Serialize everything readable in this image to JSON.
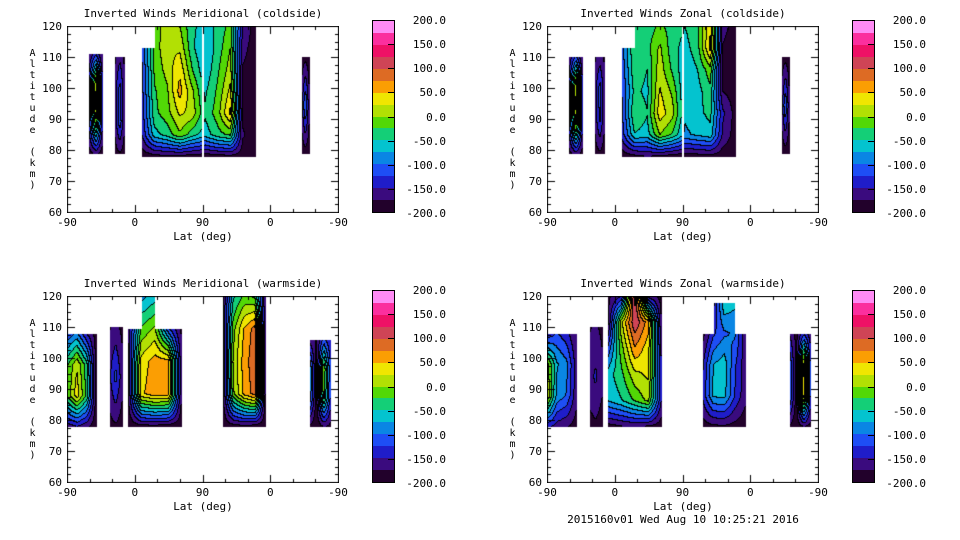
{
  "figure": {
    "background": "#ffffff",
    "footer": "2015160v01 Wed Aug 10 10:25:21 2016"
  },
  "axes": {
    "xlabel": "Lat (deg)",
    "ylabel": "Altitude (km)",
    "x_tick_labels": [
      "-90",
      "0",
      "90",
      "0",
      "-90"
    ],
    "y_tick_labels": [
      "120",
      "110",
      "100",
      "90",
      "80",
      "70",
      "60"
    ]
  },
  "colormap": {
    "min": -200,
    "max": 200,
    "step": 25,
    "colors": [
      "#22012b",
      "#3a0b7e",
      "#1f1dc9",
      "#1e4ef5",
      "#0a86e4",
      "#04c3cf",
      "#14cf77",
      "#52d806",
      "#b2e004",
      "#efe601",
      "#fb9e03",
      "#dd6b24",
      "#cf4456",
      "#ee1166",
      "#fb2f9e",
      "#fe8bf4"
    ]
  },
  "colorbar": {
    "tick_labels": [
      "200.0",
      "150.0",
      "100.0",
      "50.0",
      "0.0",
      "-50.0",
      "-100.0",
      "-150.0",
      "-200.0"
    ]
  },
  "chart_data": [
    {
      "type": "contour",
      "title": "Inverted Winds Meridional (coldside)",
      "xlabel": "Lat (deg)",
      "ylabel": "Altitude (km)",
      "x_tick_labels": [
        "-90",
        "0",
        "90",
        "0",
        "-90"
      ],
      "ylim": [
        60,
        120
      ],
      "levels": {
        "min": -200,
        "max": 200,
        "step": 25
      },
      "white_gap_x": 0.5,
      "regions": [
        {
          "x": [
            0.081,
            0.132
          ],
          "alt": [
            111,
            79
          ],
          "values": [
            [
              -175,
              -130,
              -180
            ],
            [
              -140,
              15,
              -160
            ],
            [
              -130,
              45,
              -150
            ],
            [
              -145,
              -25,
              -160
            ],
            [
              -185,
              -165,
              -188
            ]
          ]
        },
        {
          "x": [
            0.176,
            0.213
          ],
          "alt": [
            110,
            79
          ],
          "values": [
            [
              -180,
              -155,
              -182
            ],
            [
              -165,
              -115,
              -172
            ],
            [
              -168,
              -108,
              -174
            ],
            [
              -186,
              -176,
              -188
            ]
          ]
        },
        {
          "x": [
            0.276,
            0.695
          ],
          "alt": [
            120,
            78
          ],
          "values": [
            [
              null,
              -10,
              10,
              0,
              -45,
              -60,
              -45,
              -15,
              -150,
              -188
            ],
            [
              -120,
              -15,
              20,
              20,
              -45,
              -75,
              -40,
              0,
              -165,
              -190
            ],
            [
              -130,
              -20,
              10,
              45,
              -25,
              -70,
              -30,
              12,
              -178,
              -190
            ],
            [
              -135,
              -28,
              -5,
              60,
              5,
              -55,
              -20,
              32,
              -182,
              -190
            ],
            [
              -140,
              -32,
              -10,
              30,
              15,
              -45,
              -12,
              56,
              -182,
              -190
            ],
            [
              -150,
              -60,
              -40,
              -5,
              -40,
              -65,
              -35,
              -20,
              -172,
              -188
            ],
            [
              -190,
              -184,
              -180,
              -182,
              -186,
              -190,
              -186,
              -182,
              -190,
              -194
            ]
          ]
        },
        {
          "x": [
            0.864,
            0.895
          ],
          "alt": [
            110,
            79
          ],
          "values": [
            [
              -187,
              -183,
              -189
            ],
            [
              -170,
              -95,
              -175
            ],
            [
              -190,
              -187,
              -191
            ]
          ]
        }
      ]
    },
    {
      "type": "contour",
      "title": "Inverted Winds Zonal (coldside)",
      "xlabel": "Lat (deg)",
      "ylabel": "Altitude (km)",
      "x_tick_labels": [
        "-90",
        "0",
        "90",
        "0",
        "-90"
      ],
      "ylim": [
        60,
        120
      ],
      "levels": {
        "min": -200,
        "max": 200,
        "step": 25
      },
      "white_gap_x": 0.5,
      "regions": [
        {
          "x": [
            0.081,
            0.132
          ],
          "alt": [
            110,
            79
          ],
          "values": [
            [
              -170,
              -118,
              -178
            ],
            [
              -148,
              18,
              -162
            ],
            [
              -138,
              36,
              -155
            ],
            [
              -142,
              -5,
              -158
            ],
            [
              -184,
              -158,
              -186
            ]
          ]
        },
        {
          "x": [
            0.176,
            0.213
          ],
          "alt": [
            110,
            79
          ],
          "values": [
            [
              -178,
              -162,
              -180
            ],
            [
              -166,
              -112,
              -170
            ],
            [
              -170,
              -122,
              -174
            ],
            [
              -186,
              -178,
              -188
            ]
          ]
        },
        {
          "x": [
            0.276,
            0.695
          ],
          "alt": [
            120,
            78
          ],
          "values": [
            [
              null,
              -30,
              -40,
              -20,
              -35,
              -50,
              -30,
              45,
              -165,
              -188
            ],
            [
              -110,
              -25,
              -35,
              5,
              -40,
              -60,
              -35,
              58,
              -178,
              -190
            ],
            [
              -120,
              -30,
              -50,
              15,
              -30,
              -70,
              -50,
              -10,
              -185,
              -190
            ],
            [
              -125,
              -42,
              -58,
              28,
              -5,
              -74,
              -60,
              -32,
              -175,
              -188
            ],
            [
              -130,
              -25,
              -48,
              40,
              10,
              -70,
              -58,
              -42,
              -145,
              -184
            ],
            [
              -140,
              -52,
              -62,
              0,
              -30,
              -80,
              -70,
              -60,
              -155,
              -187
            ],
            [
              -190,
              -182,
              -174,
              -180,
              -187,
              -191,
              -187,
              -183,
              -191,
              -194
            ]
          ]
        },
        {
          "x": [
            0.864,
            0.895
          ],
          "alt": [
            110,
            79
          ],
          "values": [
            [
              -187,
              -184,
              -189
            ],
            [
              -172,
              -100,
              -176
            ],
            [
              -190,
              -188,
              -191
            ]
          ]
        }
      ]
    },
    {
      "type": "contour",
      "title": "Inverted Winds Meridional (warmside)",
      "xlabel": "Lat (deg)",
      "ylabel": "Altitude (km)",
      "x_tick_labels": [
        "-90",
        "0",
        "90",
        "0",
        "-90"
      ],
      "ylim": [
        60,
        120
      ],
      "levels": {
        "min": -200,
        "max": 200,
        "step": 25
      },
      "regions": [
        {
          "x": [
            0.0,
            0.108
          ],
          "alt": [
            108,
            78
          ],
          "values": [
            [
              -120,
              -95,
              -150,
              -186
            ],
            [
              -30,
              22,
              -40,
              -188
            ],
            [
              -20,
              40,
              -30,
              -188
            ],
            [
              -165,
              -150,
              -170,
              -192
            ]
          ]
        },
        {
          "x": [
            0.155,
            0.203
          ],
          "alt": [
            110,
            78
          ],
          "values": [
            [
              -178,
              -168,
              -180
            ],
            [
              -158,
              -115,
              -164
            ],
            [
              -184,
              -179,
              -186
            ]
          ]
        },
        {
          "x": [
            0.224,
            0.423
          ],
          "alt": [
            120,
            78
          ],
          "values": [
            [
              null,
              -85,
              -62,
              null,
              null
            ],
            [
              -175,
              -20,
              5,
              -120,
              -180
            ],
            [
              -184,
              35,
              62,
              58,
              -174
            ],
            [
              -187,
              45,
              66,
              60,
              -178
            ],
            [
              -192,
              -185,
              -183,
              -188,
              -192
            ]
          ]
        },
        {
          "x": [
            0.574,
            0.732
          ],
          "alt": [
            120,
            78
          ],
          "values": [
            [
              -180,
              -55,
              -20,
              -30,
              -170
            ],
            [
              -186,
              -10,
              52,
              86,
              -180
            ],
            [
              -188,
              5,
              62,
              92,
              -184
            ],
            [
              -188,
              -5,
              58,
              84,
              -184
            ],
            [
              -192,
              -185,
              -181,
              -186,
              -192
            ]
          ]
        },
        {
          "x": [
            0.893,
            0.974
          ],
          "alt": [
            106,
            78
          ],
          "values": [
            [
              -160,
              -178,
              -115,
              -155
            ],
            [
              -60,
              -186,
              0,
              -130
            ],
            [
              -70,
              -186,
              -12,
              -140
            ],
            [
              -180,
              -191,
              -172,
              -183
            ]
          ]
        }
      ]
    },
    {
      "type": "contour",
      "title": "Inverted Winds Zonal (warmside)",
      "xlabel": "Lat (deg)",
      "ylabel": "Altitude (km)",
      "x_tick_labels": [
        "-90",
        "0",
        "90",
        "0",
        "-90"
      ],
      "ylim": [
        60,
        120
      ],
      "levels": {
        "min": -200,
        "max": 200,
        "step": 25
      },
      "regions": [
        {
          "x": [
            0.0,
            0.108
          ],
          "alt": [
            108,
            78
          ],
          "values": [
            [
              -148,
              -122,
              -142,
              -176
            ],
            [
              12,
              -72,
              -92,
              -162
            ],
            [
              28,
              -82,
              -102,
              -166
            ],
            [
              -142,
              -162,
              -172,
              -186
            ]
          ]
        },
        {
          "x": [
            0.155,
            0.203
          ],
          "alt": [
            110,
            78
          ],
          "values": [
            [
              -178,
              -170,
              -181
            ],
            [
              -160,
              -145,
              -166
            ],
            [
              -184,
              -180,
              -187
            ]
          ]
        },
        {
          "x": [
            0.224,
            0.423
          ],
          "alt": [
            120,
            78
          ],
          "values": [
            [
              -182,
              -152,
              135,
              -162,
              -186
            ],
            [
              -186,
              18,
              122,
              62,
              -182
            ],
            [
              -122,
              -12,
              72,
              36,
              -162
            ],
            [
              -62,
              -32,
              18,
              30,
              -152
            ],
            [
              -72,
              -52,
              -22,
              8,
              -156
            ],
            [
              -186,
              -176,
              -170,
              -178,
              -190
            ]
          ]
        },
        {
          "x": [
            0.574,
            0.732
          ],
          "alt": [
            118,
            78
          ],
          "values": [
            [
              null,
              -160,
              -55,
              -70,
              null
            ],
            [
              -185,
              -130,
              -105,
              -95,
              -170
            ],
            [
              -155,
              -75,
              -60,
              -120,
              -165
            ],
            [
              -145,
              -70,
              -65,
              -125,
              -168
            ],
            [
              -186,
              -180,
              -178,
              -184,
              -191
            ]
          ]
        },
        {
          "x": [
            0.893,
            0.974
          ],
          "alt": [
            108,
            78
          ],
          "values": [
            [
              -150,
              -182,
              -130,
              -168
            ],
            [
              -95,
              -187,
              42,
              -145
            ],
            [
              -88,
              -187,
              50,
              -148
            ],
            [
              -177,
              -192,
              -173,
              -184
            ]
          ]
        }
      ]
    }
  ]
}
